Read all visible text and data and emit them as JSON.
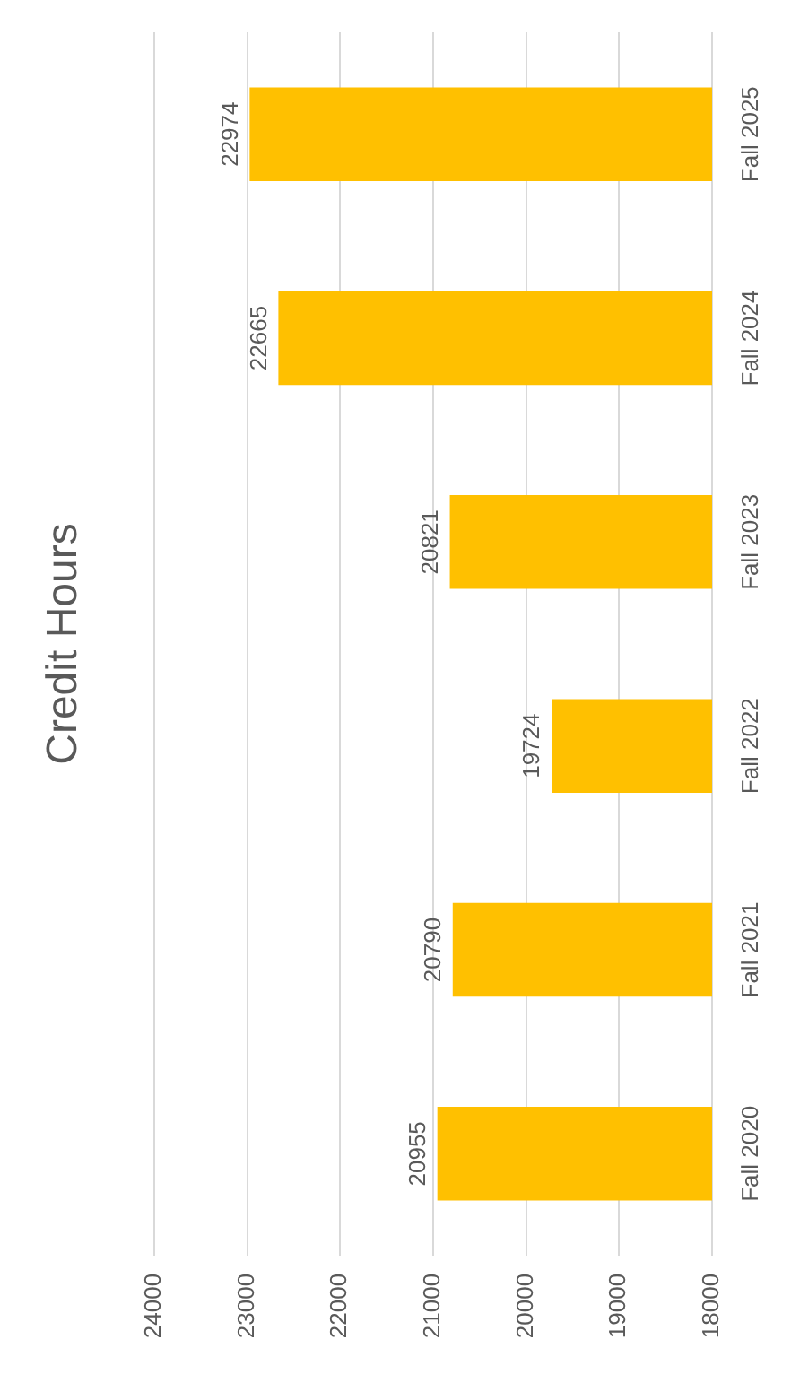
{
  "chart_data": {
    "type": "bar",
    "title": "Credit Hours",
    "orientation": "horizontal",
    "categories": [
      "Fall 2025",
      "Fall 2024",
      "Fall 2023",
      "Fall 2022",
      "Fall 2021",
      "Fall 2020"
    ],
    "values": [
      22974,
      22665,
      20821,
      19724,
      20790,
      20955
    ],
    "color": "#ffc000",
    "xlim": [
      24000,
      18000
    ],
    "xticks": [
      24000,
      23000,
      22000,
      21000,
      20000,
      19000,
      18000
    ],
    "grid": "x",
    "legend": false,
    "data_labels": true
  }
}
